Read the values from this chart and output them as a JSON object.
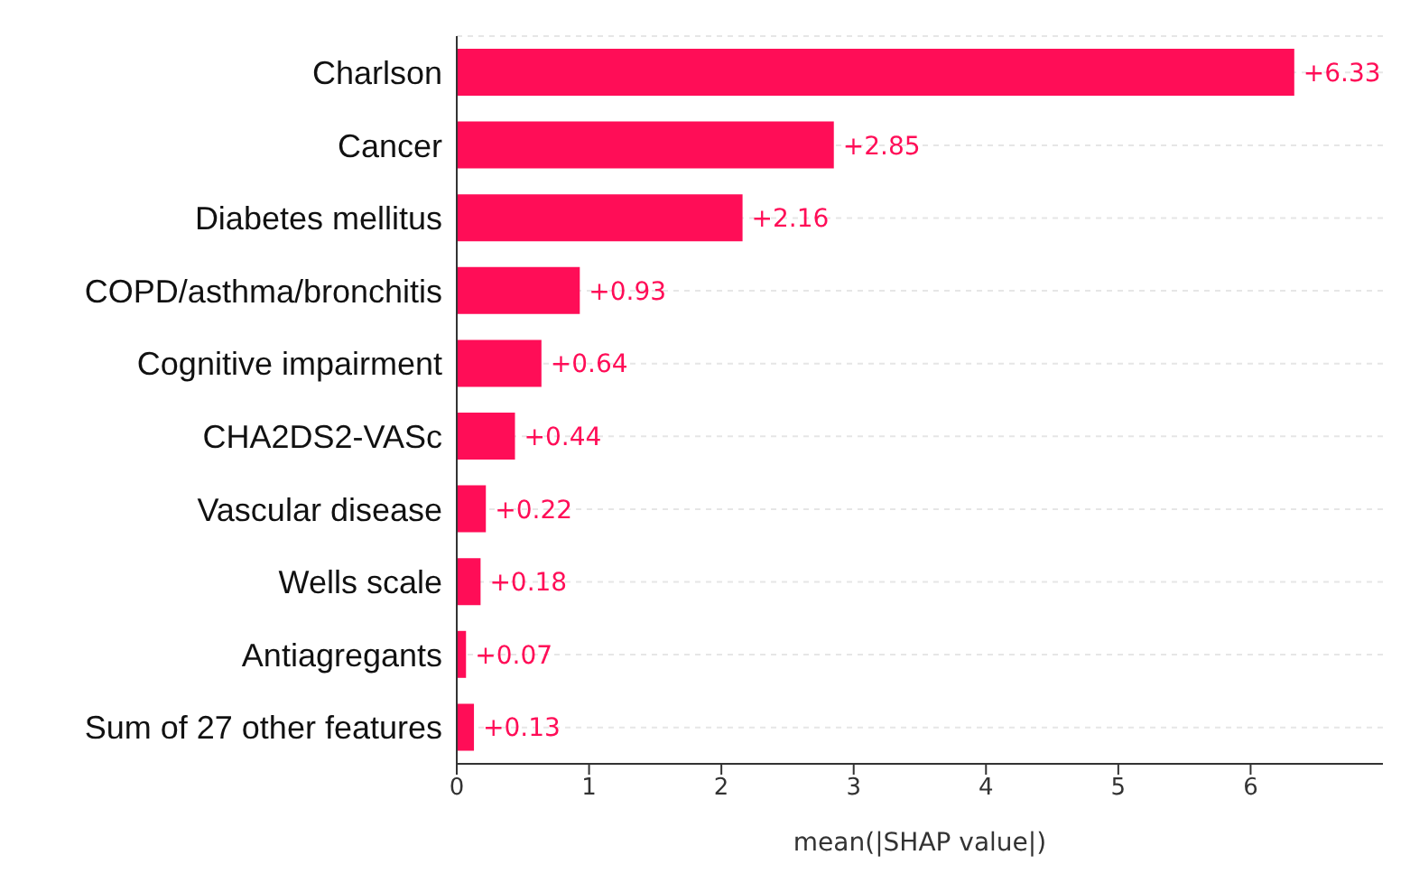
{
  "chart_data": {
    "type": "bar",
    "orientation": "horizontal",
    "xlabel": "mean(|SHAP value|)",
    "categories": [
      "Charlson",
      "Cancer",
      "Diabetes mellitus",
      "COPD/asthma/bronchitis",
      "Cognitive impairment",
      "CHA2DS2-VASc",
      "Vascular disease",
      "Wells scale",
      "Antiagregants",
      "Sum of 27 other features"
    ],
    "values": [
      6.33,
      2.85,
      2.16,
      0.93,
      0.64,
      0.44,
      0.22,
      0.18,
      0.07,
      0.13
    ],
    "value_labels": [
      "+6.33",
      "+2.85",
      "+2.16",
      "+0.93",
      "+0.64",
      "+0.44",
      "+0.22",
      "+0.18",
      "+0.07",
      "+0.13"
    ],
    "color": "#ff0d57",
    "xlim": [
      0,
      7
    ],
    "xticks": [
      0,
      1,
      2,
      3,
      4,
      5,
      6
    ],
    "grid": "y",
    "legend": false
  }
}
